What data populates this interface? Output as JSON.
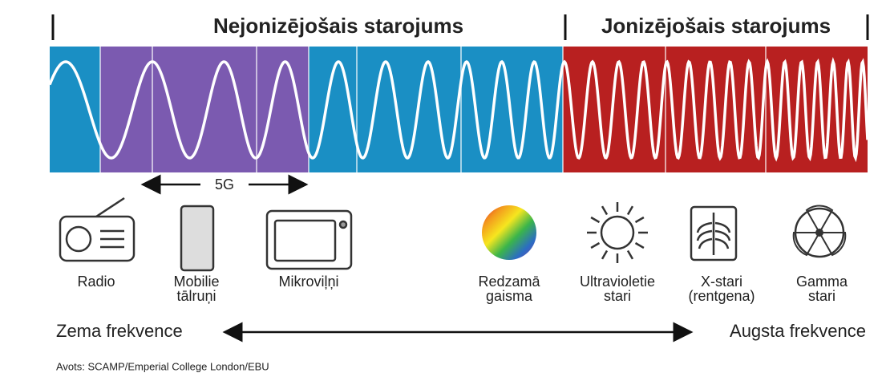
{
  "header": {
    "left_title": "Nejonizējošais starojums",
    "right_title": "Jonizējošais starojums"
  },
  "band_label": "5G",
  "items": [
    {
      "lines": [
        "Radio"
      ]
    },
    {
      "lines": [
        "Mobilie",
        "tālruņi"
      ]
    },
    {
      "lines": [
        "Mikroviļņi"
      ]
    },
    {
      "lines": [
        "Redzamā",
        "gaisma"
      ]
    },
    {
      "lines": [
        "Ultravioletie",
        "stari"
      ]
    },
    {
      "lines": [
        "X-stari",
        "(rentgena)"
      ]
    },
    {
      "lines": [
        "Gamma",
        "stari"
      ]
    }
  ],
  "axis": {
    "low": "Zema frekvence",
    "high": "Augsta frekvence"
  },
  "source": "Avots: SCAMP/Emperial College London/EBU"
}
